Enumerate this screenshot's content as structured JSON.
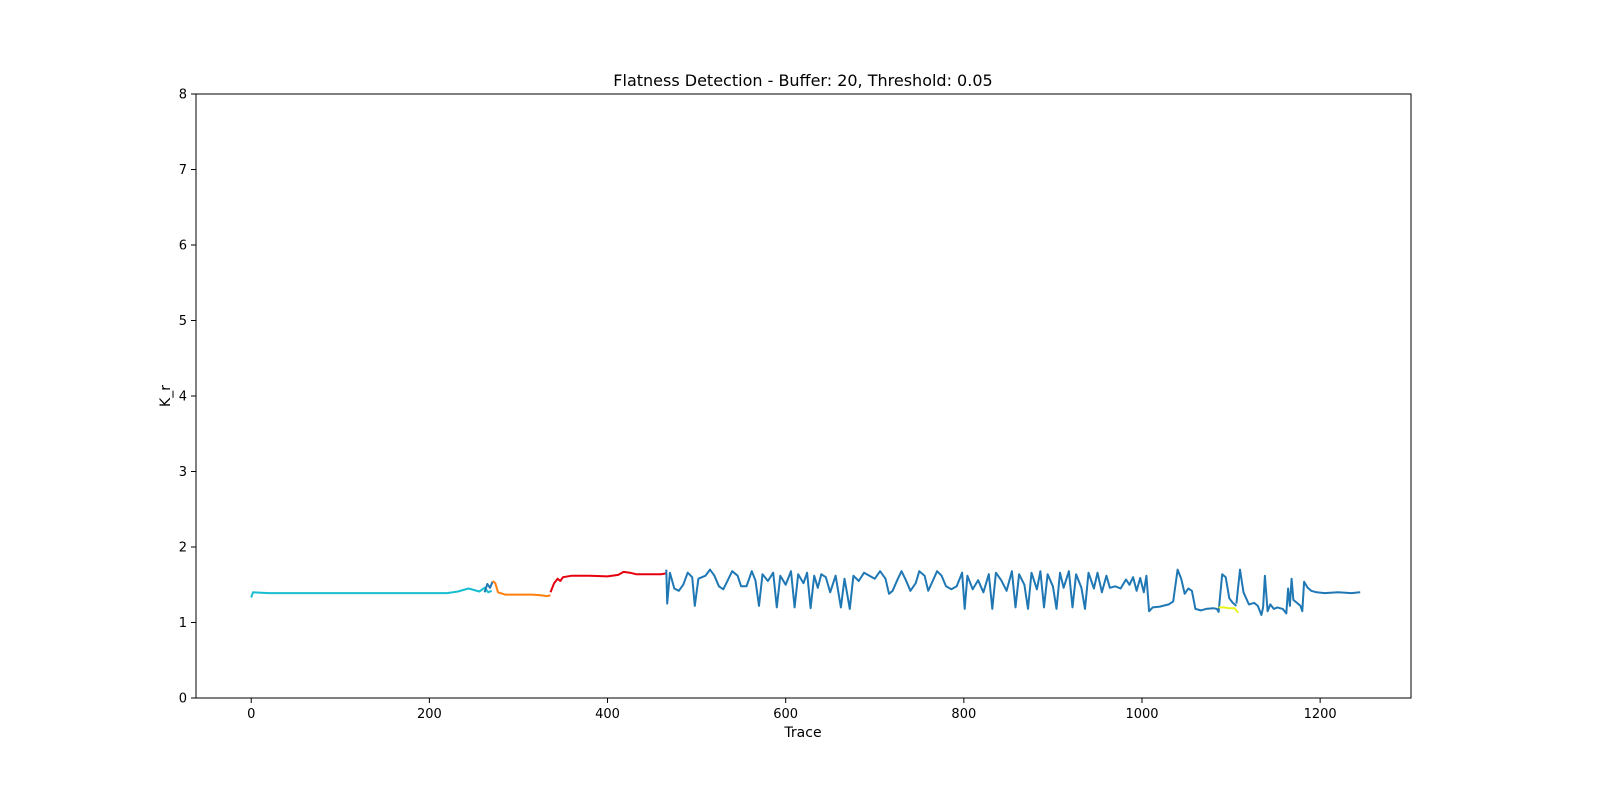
{
  "chart_data": {
    "type": "line",
    "title": "Flatness Detection - Buffer: 20, Threshold: 0.05",
    "xlabel": "Trace",
    "ylabel": "K_r",
    "xlim": [
      -62,
      1302
    ],
    "ylim": [
      0,
      8
    ],
    "xticks": [
      0,
      200,
      400,
      600,
      800,
      1000,
      1200
    ],
    "yticks": [
      0,
      1,
      2,
      3,
      4,
      5,
      6,
      7,
      8
    ],
    "grid": false,
    "legend": "none",
    "series": [
      {
        "color": "#17becf",
        "points": [
          [
            0,
            1.33
          ],
          [
            2,
            1.4
          ],
          [
            20,
            1.39
          ],
          [
            60,
            1.39
          ],
          [
            100,
            1.39
          ],
          [
            140,
            1.39
          ],
          [
            180,
            1.39
          ],
          [
            220,
            1.39
          ],
          [
            232,
            1.41
          ],
          [
            238,
            1.43
          ],
          [
            244,
            1.45
          ],
          [
            250,
            1.43
          ],
          [
            256,
            1.41
          ],
          [
            262,
            1.46
          ],
          [
            266,
            1.4
          ],
          [
            270,
            1.42
          ]
        ]
      },
      {
        "color": "#1f77b4",
        "points": [
          [
            262,
            1.4
          ],
          [
            265,
            1.51
          ],
          [
            268,
            1.46
          ],
          [
            271,
            1.54
          ]
        ]
      },
      {
        "color": "#ff7f0e",
        "points": [
          [
            271,
            1.55
          ],
          [
            274,
            1.52
          ],
          [
            277,
            1.4
          ],
          [
            285,
            1.37
          ],
          [
            300,
            1.37
          ],
          [
            315,
            1.37
          ],
          [
            325,
            1.36
          ],
          [
            332,
            1.35
          ],
          [
            336,
            1.36
          ]
        ]
      },
      {
        "color": "#e6000e",
        "points": [
          [
            336,
            1.4
          ],
          [
            340,
            1.52
          ],
          [
            344,
            1.58
          ],
          [
            347,
            1.55
          ],
          [
            350,
            1.6
          ],
          [
            360,
            1.62
          ],
          [
            380,
            1.62
          ],
          [
            400,
            1.61
          ],
          [
            412,
            1.63
          ],
          [
            418,
            1.67
          ],
          [
            425,
            1.66
          ],
          [
            432,
            1.64
          ],
          [
            445,
            1.64
          ],
          [
            460,
            1.64
          ],
          [
            466,
            1.65
          ]
        ]
      },
      {
        "color": "#1f77b4",
        "points": [
          [
            466,
            1.7
          ],
          [
            467,
            1.25
          ],
          [
            470,
            1.66
          ],
          [
            475,
            1.45
          ],
          [
            480,
            1.42
          ],
          [
            485,
            1.5
          ],
          [
            490,
            1.66
          ],
          [
            495,
            1.6
          ],
          [
            498,
            1.22
          ],
          [
            502,
            1.58
          ],
          [
            510,
            1.62
          ],
          [
            515,
            1.7
          ],
          [
            520,
            1.62
          ],
          [
            525,
            1.48
          ],
          [
            530,
            1.44
          ],
          [
            535,
            1.56
          ],
          [
            540,
            1.68
          ],
          [
            546,
            1.62
          ],
          [
            550,
            1.48
          ],
          [
            556,
            1.48
          ],
          [
            562,
            1.68
          ],
          [
            566,
            1.56
          ],
          [
            570,
            1.22
          ],
          [
            574,
            1.64
          ],
          [
            580,
            1.55
          ],
          [
            586,
            1.66
          ],
          [
            590,
            1.2
          ],
          [
            594,
            1.62
          ],
          [
            600,
            1.5
          ],
          [
            606,
            1.68
          ],
          [
            610,
            1.2
          ],
          [
            614,
            1.64
          ],
          [
            620,
            1.52
          ],
          [
            624,
            1.66
          ],
          [
            628,
            1.19
          ],
          [
            632,
            1.62
          ],
          [
            636,
            1.46
          ],
          [
            640,
            1.64
          ],
          [
            645,
            1.6
          ],
          [
            650,
            1.4
          ],
          [
            656,
            1.62
          ],
          [
            662,
            1.2
          ],
          [
            666,
            1.58
          ],
          [
            672,
            1.18
          ],
          [
            676,
            1.62
          ],
          [
            682,
            1.55
          ],
          [
            688,
            1.66
          ],
          [
            694,
            1.62
          ],
          [
            700,
            1.58
          ],
          [
            706,
            1.68
          ],
          [
            712,
            1.58
          ],
          [
            716,
            1.38
          ],
          [
            720,
            1.42
          ],
          [
            726,
            1.58
          ],
          [
            730,
            1.68
          ],
          [
            735,
            1.56
          ],
          [
            740,
            1.42
          ],
          [
            746,
            1.52
          ],
          [
            750,
            1.68
          ],
          [
            756,
            1.62
          ],
          [
            760,
            1.42
          ],
          [
            765,
            1.55
          ],
          [
            770,
            1.68
          ],
          [
            775,
            1.62
          ],
          [
            780,
            1.48
          ],
          [
            786,
            1.44
          ],
          [
            792,
            1.48
          ],
          [
            798,
            1.66
          ],
          [
            801,
            1.18
          ],
          [
            804,
            1.62
          ],
          [
            810,
            1.44
          ],
          [
            816,
            1.56
          ],
          [
            822,
            1.4
          ],
          [
            828,
            1.64
          ],
          [
            832,
            1.18
          ],
          [
            836,
            1.66
          ],
          [
            842,
            1.56
          ],
          [
            848,
            1.42
          ],
          [
            854,
            1.68
          ],
          [
            858,
            1.2
          ],
          [
            862,
            1.64
          ],
          [
            868,
            1.5
          ],
          [
            872,
            1.18
          ],
          [
            876,
            1.66
          ],
          [
            882,
            1.44
          ],
          [
            886,
            1.68
          ],
          [
            890,
            1.2
          ],
          [
            894,
            1.64
          ],
          [
            900,
            1.48
          ],
          [
            904,
            1.18
          ],
          [
            908,
            1.66
          ],
          [
            912,
            1.46
          ],
          [
            918,
            1.68
          ],
          [
            922,
            1.2
          ],
          [
            926,
            1.64
          ],
          [
            932,
            1.46
          ],
          [
            936,
            1.18
          ],
          [
            940,
            1.66
          ],
          [
            946,
            1.45
          ],
          [
            950,
            1.66
          ],
          [
            955,
            1.4
          ],
          [
            960,
            1.62
          ],
          [
            964,
            1.46
          ],
          [
            970,
            1.48
          ],
          [
            976,
            1.45
          ],
          [
            982,
            1.57
          ],
          [
            986,
            1.5
          ],
          [
            990,
            1.6
          ],
          [
            994,
            1.42
          ],
          [
            998,
            1.59
          ],
          [
            1002,
            1.4
          ],
          [
            1005,
            1.62
          ],
          [
            1008,
            1.15
          ],
          [
            1012,
            1.2
          ],
          [
            1020,
            1.21
          ],
          [
            1030,
            1.24
          ],
          [
            1035,
            1.28
          ],
          [
            1040,
            1.7
          ],
          [
            1044,
            1.58
          ],
          [
            1048,
            1.38
          ],
          [
            1052,
            1.45
          ],
          [
            1056,
            1.42
          ],
          [
            1060,
            1.18
          ],
          [
            1066,
            1.16
          ],
          [
            1072,
            1.18
          ],
          [
            1080,
            1.19
          ],
          [
            1084,
            1.18
          ],
          [
            1086,
            1.14
          ],
          [
            1090,
            1.64
          ],
          [
            1094,
            1.6
          ],
          [
            1098,
            1.32
          ],
          [
            1102,
            1.26
          ],
          [
            1106,
            1.22
          ]
        ]
      },
      {
        "color": "#e6f51e",
        "points": [
          [
            1086,
            1.2
          ],
          [
            1092,
            1.2
          ],
          [
            1098,
            1.19
          ],
          [
            1104,
            1.19
          ],
          [
            1108,
            1.13
          ]
        ]
      },
      {
        "color": "#1f77b4",
        "points": [
          [
            1106,
            1.25
          ],
          [
            1110,
            1.7
          ],
          [
            1114,
            1.4
          ],
          [
            1120,
            1.24
          ],
          [
            1126,
            1.26
          ],
          [
            1130,
            1.22
          ],
          [
            1134,
            1.1
          ],
          [
            1136,
            1.2
          ],
          [
            1138,
            1.62
          ],
          [
            1141,
            1.15
          ],
          [
            1144,
            1.24
          ],
          [
            1148,
            1.18
          ],
          [
            1152,
            1.2
          ],
          [
            1158,
            1.18
          ],
          [
            1162,
            1.12
          ],
          [
            1164,
            1.45
          ],
          [
            1166,
            1.22
          ],
          [
            1168,
            1.58
          ],
          [
            1170,
            1.3
          ],
          [
            1174,
            1.26
          ],
          [
            1178,
            1.22
          ],
          [
            1180,
            1.15
          ],
          [
            1182,
            1.54
          ],
          [
            1186,
            1.46
          ],
          [
            1190,
            1.42
          ],
          [
            1196,
            1.4
          ],
          [
            1205,
            1.39
          ],
          [
            1220,
            1.4
          ],
          [
            1235,
            1.39
          ],
          [
            1245,
            1.4
          ]
        ]
      }
    ]
  }
}
